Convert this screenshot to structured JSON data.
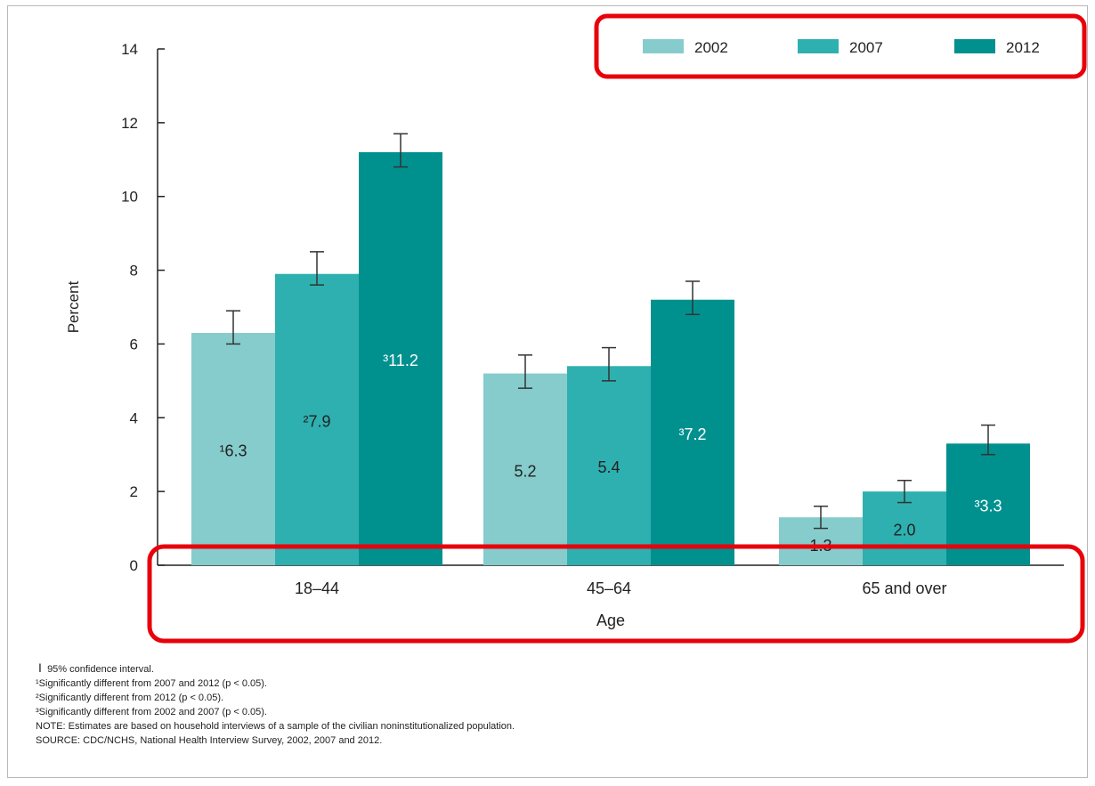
{
  "chart_data": {
    "type": "bar",
    "xlabel": "Age",
    "ylabel": "Percent",
    "ylim": [
      0,
      14
    ],
    "yticks": [
      0,
      2,
      4,
      6,
      8,
      10,
      12,
      14
    ],
    "grid": false,
    "legend_position": "top-right",
    "categories": [
      "18–44",
      "45–64",
      "65 and over"
    ],
    "series": [
      {
        "name": "2002",
        "color": "#86cccc",
        "values": [
          6.3,
          5.2,
          1.3
        ],
        "ci_low": [
          6.0,
          4.8,
          1.0
        ],
        "ci_high": [
          6.9,
          5.7,
          1.6
        ],
        "labels": [
          "¹6.3",
          "5.2",
          "1.3"
        ]
      },
      {
        "name": "2007",
        "color": "#2eb0b0",
        "values": [
          7.9,
          5.4,
          2.0
        ],
        "ci_low": [
          7.6,
          5.0,
          1.7
        ],
        "ci_high": [
          8.5,
          5.9,
          2.3
        ],
        "labels": [
          "²7.9",
          "5.4",
          "2.0"
        ]
      },
      {
        "name": "2012",
        "color": "#00918f",
        "values": [
          11.2,
          7.2,
          3.3
        ],
        "ci_low": [
          10.8,
          6.8,
          3.0
        ],
        "ci_high": [
          11.7,
          7.7,
          3.8
        ],
        "labels": [
          "³11.2",
          "³7.2",
          "³3.3"
        ]
      }
    ],
    "annotation_colors": {
      "highlight_box": "#e8000b"
    }
  },
  "footnotes": {
    "ci": "95% confidence interval.",
    "note1": "¹Significantly different from 2007 and 2012 (p < 0.05).",
    "note2": "²Significantly different from 2012 (p < 0.05).",
    "note3": "³Significantly different from 2002 and 2007 (p < 0.05).",
    "note": "NOTE: Estimates are based on household interviews of a sample of the civilian noninstitutionalized population.",
    "source": "SOURCE: CDC/NCHS, National Health Interview Survey, 2002, 2007 and 2012."
  }
}
